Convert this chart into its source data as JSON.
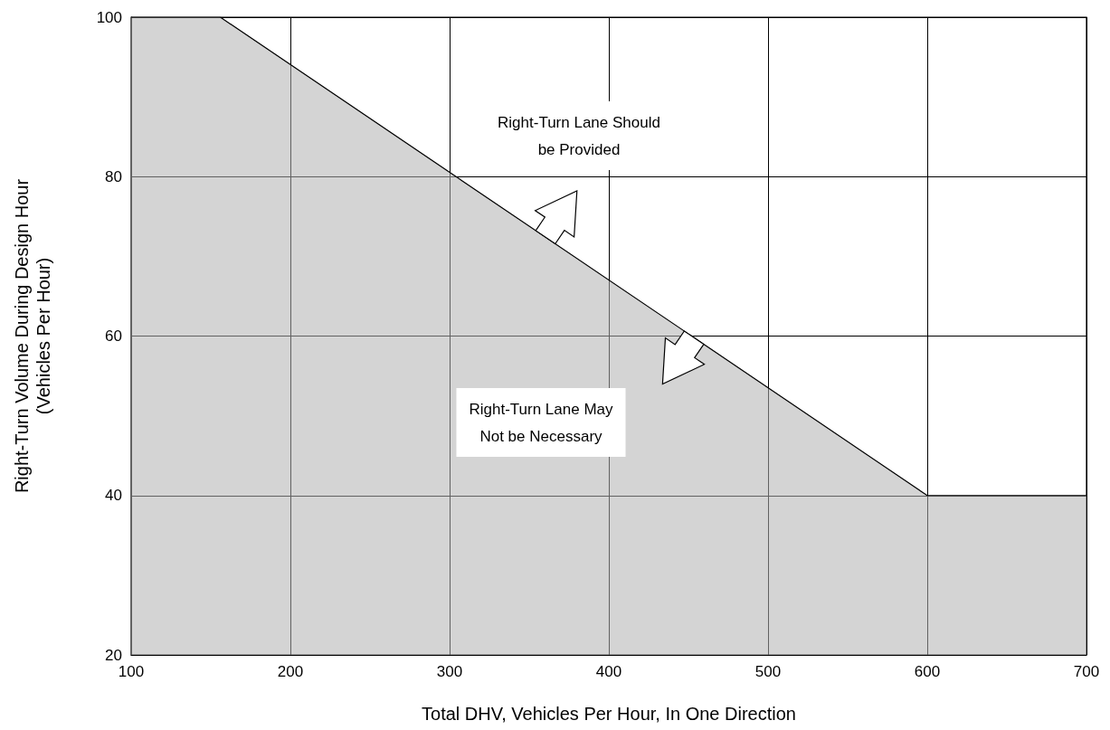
{
  "chart_data": {
    "type": "area",
    "xlabel": "Total DHV, Vehicles Per Hour, In One Direction",
    "ylabel": "Right-Turn Volume During Design Hour\n(Vehicles Per Hour)",
    "x": [
      100,
      156,
      600,
      700
    ],
    "series": [
      {
        "color": "#b0b0b0",
        "values": [
          100,
          100,
          40,
          40
        ]
      }
    ],
    "xlim": [
      100,
      700
    ],
    "xticks": [
      100,
      200,
      300,
      400,
      500,
      600,
      700
    ],
    "ylim": [
      20,
      100
    ],
    "yticks": [
      20,
      40,
      60,
      80,
      100
    ],
    "grid": true,
    "annotations": [
      "Right-Turn Lane Should\nbe Provided",
      "Right-Turn Lane May\nNot be Necessary"
    ]
  }
}
